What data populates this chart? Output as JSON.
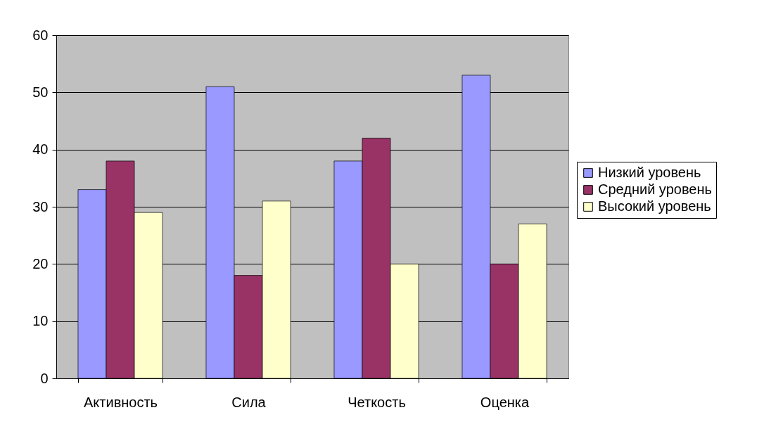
{
  "chart_data": {
    "type": "bar",
    "categories": [
      "Активность",
      "Сила",
      "Четкость",
      "Оценка"
    ],
    "series": [
      {
        "name": "Низкий уровень",
        "color": "#9999ff",
        "values": [
          33,
          51,
          38,
          53
        ]
      },
      {
        "name": "Средний уровень",
        "color": "#993366",
        "values": [
          38,
          18,
          42,
          20
        ]
      },
      {
        "name": "Высокий уровень",
        "color": "#ffffcc",
        "values": [
          29,
          31,
          20,
          27
        ]
      }
    ],
    "ylim": [
      0,
      60
    ],
    "yticks": [
      0,
      10,
      20,
      30,
      40,
      50,
      60
    ],
    "grid": "y",
    "legend": "right"
  }
}
